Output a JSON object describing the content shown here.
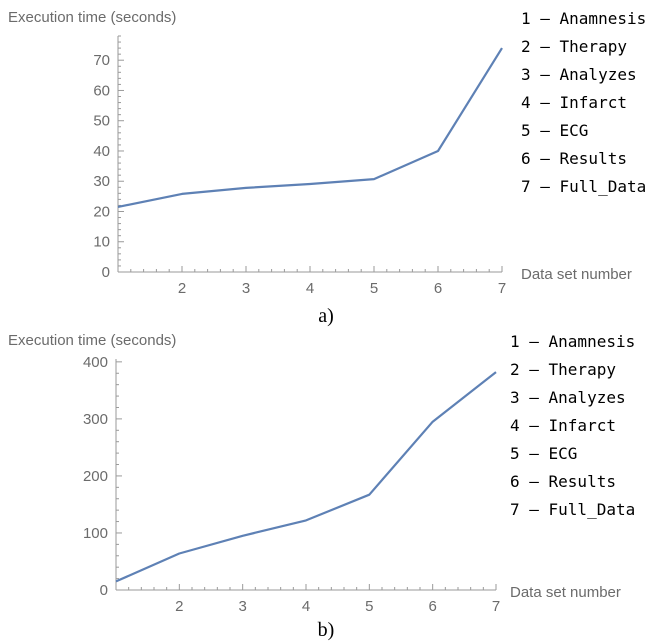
{
  "chart_data": [
    {
      "type": "line",
      "panel_label": "a)",
      "ylabel": "Execution time (seconds)",
      "xlabel": "Data set number",
      "xlim": [
        1,
        7
      ],
      "ylim": [
        0,
        78
      ],
      "x_ticks": [
        2,
        3,
        4,
        5,
        6,
        7
      ],
      "y_ticks": [
        0,
        10,
        20,
        30,
        40,
        50,
        60,
        70
      ],
      "x": [
        1,
        2,
        3,
        4,
        5,
        6,
        7
      ],
      "series": [
        {
          "values": [
            21.5,
            25.8,
            27.8,
            29.1,
            30.7,
            40.0,
            74.0
          ],
          "color": "#5e81b5"
        }
      ],
      "legend": [
        "1 – Anamnesis",
        "2 – Therapy",
        "3 – Analyzes",
        "4 – Infarct",
        "5 – ECG",
        "6 – Results",
        "7 – Full_Data"
      ],
      "legend_position": "right"
    },
    {
      "type": "line",
      "panel_label": "b)",
      "ylabel": "Execution time (seconds)",
      "xlabel": "Data set number",
      "xlim": [
        1,
        7
      ],
      "ylim": [
        0,
        405
      ],
      "x_ticks": [
        2,
        3,
        4,
        5,
        6,
        7
      ],
      "y_ticks": [
        0,
        100,
        200,
        300,
        400
      ],
      "x": [
        1,
        2,
        3,
        4,
        5,
        6,
        7
      ],
      "series": [
        {
          "values": [
            15,
            64,
            95,
            122,
            167,
            295,
            382
          ],
          "color": "#5e81b5"
        }
      ],
      "legend": [
        "1 – Anamnesis",
        "2 – Therapy",
        "3 – Analyzes",
        "4 – Infarct",
        "5 – ECG",
        "6 – Results",
        "7 – Full_Data"
      ],
      "legend_position": "right"
    }
  ]
}
